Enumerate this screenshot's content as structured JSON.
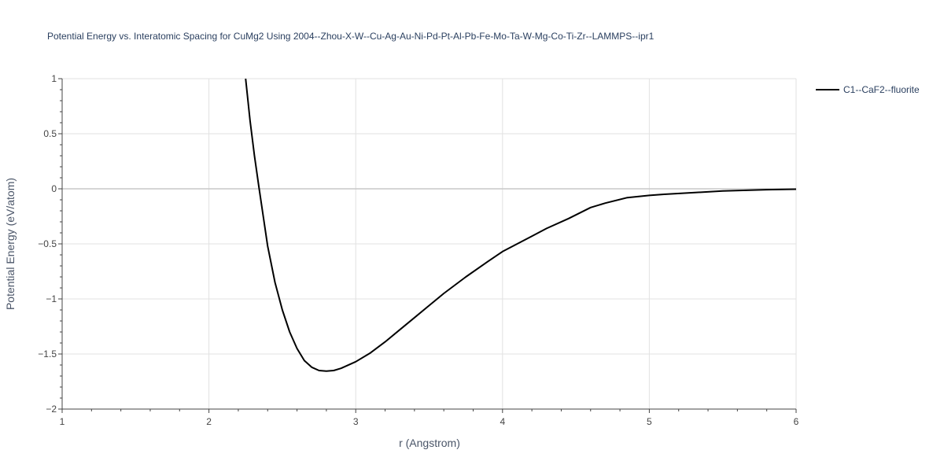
{
  "chart_data": {
    "type": "line",
    "title": "Potential Energy vs. Interatomic Spacing for CuMg2 Using 2004--Zhou-X-W--Cu-Ag-Au-Ni-Pd-Pt-Al-Pb-Fe-Mo-Ta-W-Mg-Co-Ti-Zr--LAMMPS--ipr1",
    "xlabel": "r (Angstrom)",
    "ylabel": "Potential Energy (eV/atom)",
    "xlim": [
      1,
      6
    ],
    "ylim": [
      -2,
      1
    ],
    "x_ticks": [
      1,
      2,
      3,
      4,
      5,
      6
    ],
    "x_tick_labels": [
      "1",
      "2",
      "3",
      "4",
      "5",
      "6"
    ],
    "y_ticks": [
      1,
      0.5,
      0,
      -0.5,
      -1,
      -1.5,
      -2
    ],
    "y_tick_labels": [
      "1",
      "0.5",
      "0",
      "−0.5",
      "−1",
      "−1.5",
      "−2"
    ],
    "grid": true,
    "legend_position": "top-right",
    "line_color": "#000000",
    "series": [
      {
        "name": "C1--CaF2--fluorite",
        "x": [
          2.25,
          2.28,
          2.31,
          2.34,
          2.37,
          2.4,
          2.45,
          2.5,
          2.55,
          2.6,
          2.65,
          2.7,
          2.75,
          2.8,
          2.85,
          2.9,
          3.0,
          3.1,
          3.2,
          3.3,
          3.4,
          3.5,
          3.6,
          3.75,
          3.9,
          4.0,
          4.1,
          4.2,
          4.3,
          4.45,
          4.6,
          4.7,
          4.85,
          5.0,
          5.1,
          5.3,
          5.5,
          5.8,
          6.0
        ],
        "y": [
          1.0,
          0.62,
          0.3,
          0.02,
          -0.25,
          -0.52,
          -0.85,
          -1.1,
          -1.3,
          -1.45,
          -1.56,
          -1.62,
          -1.65,
          -1.655,
          -1.65,
          -1.63,
          -1.57,
          -1.49,
          -1.39,
          -1.28,
          -1.17,
          -1.06,
          -0.95,
          -0.8,
          -0.66,
          -0.57,
          -0.5,
          -0.43,
          -0.36,
          -0.27,
          -0.17,
          -0.13,
          -0.08,
          -0.06,
          -0.05,
          -0.035,
          -0.02,
          -0.008,
          -0.004
        ]
      }
    ]
  }
}
